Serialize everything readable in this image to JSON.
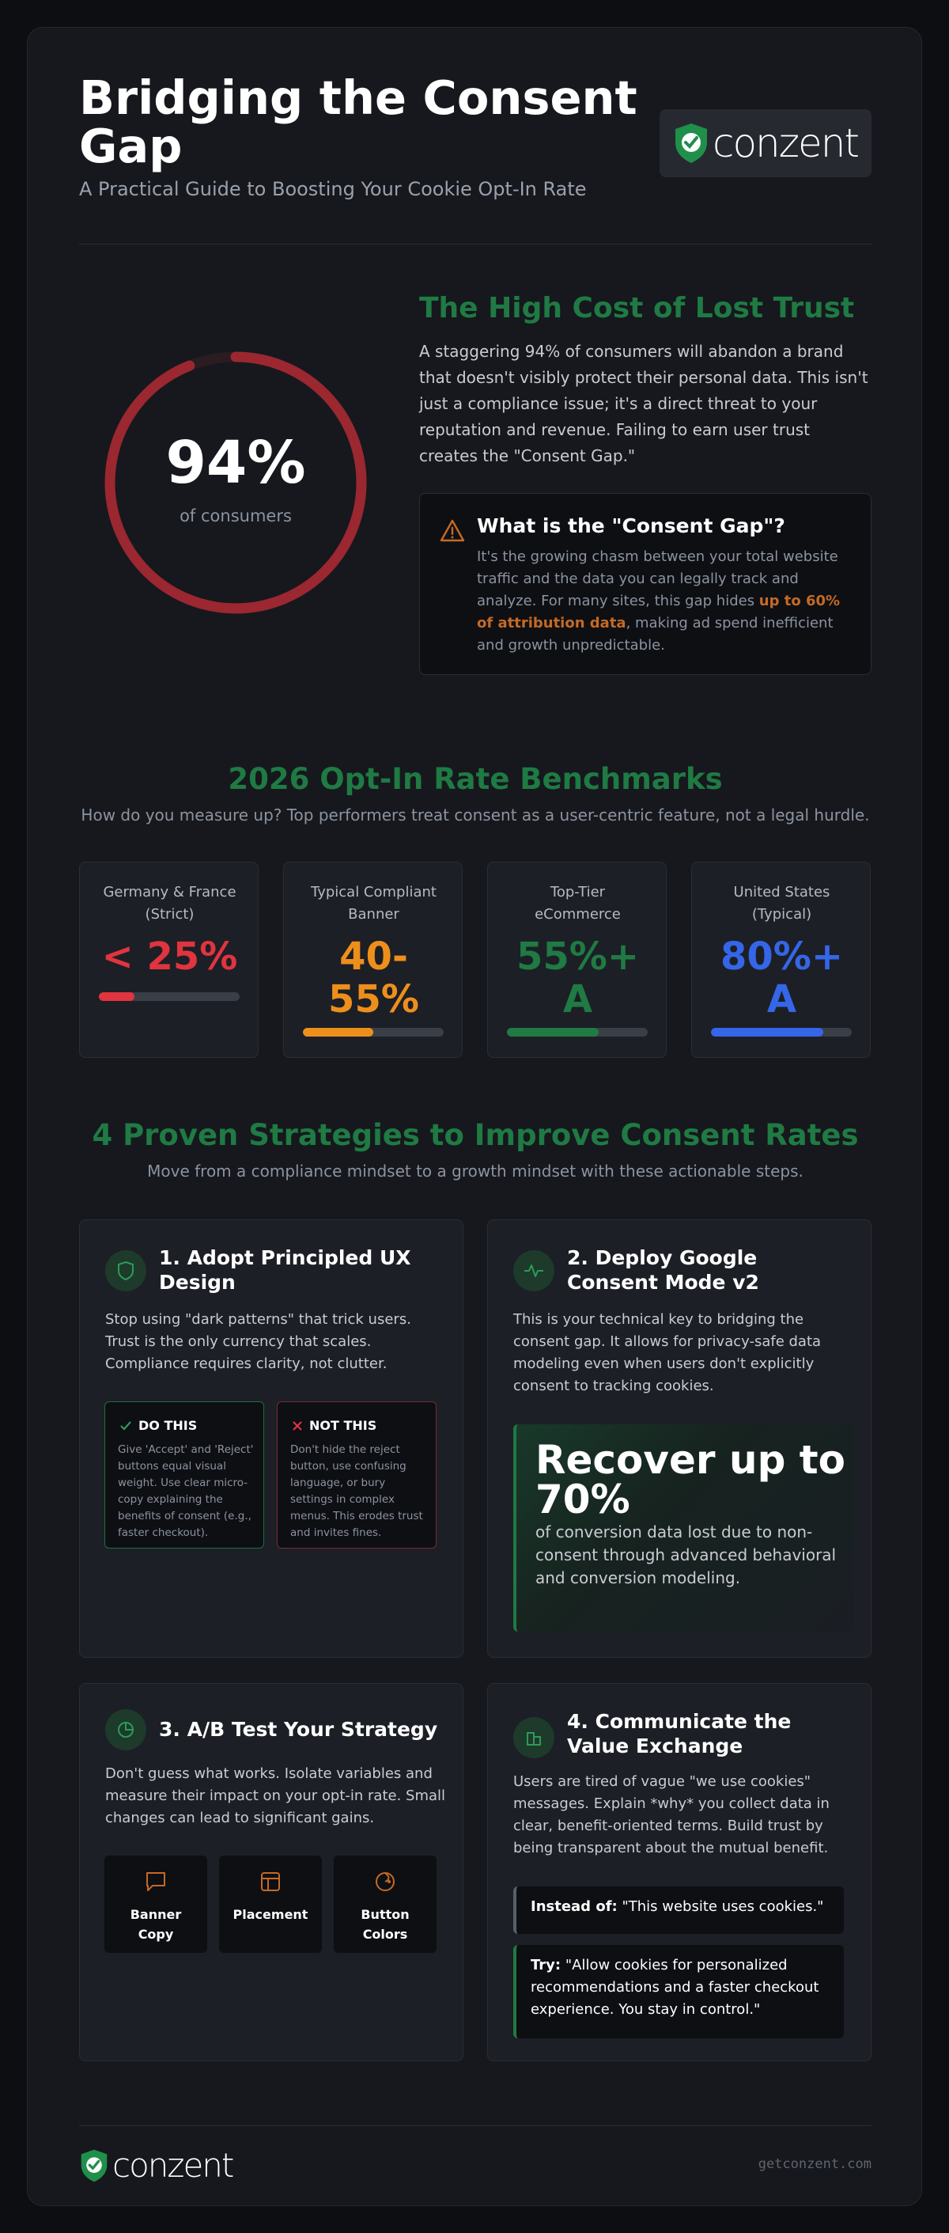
{
  "header": {
    "title": "Bridging the Consent Gap",
    "subtitle": "A Practical Guide to Boosting Your Cookie Opt-In Rate",
    "logo_text": "conzent"
  },
  "stat": {
    "value": "94%",
    "label": "of consumers",
    "ring_fraction": 0.94,
    "ring_color": "#9b2730"
  },
  "cost": {
    "title": "The High Cost of Lost Trust",
    "body": "A staggering 94% of consumers will abandon a brand that doesn't visibly protect their personal data. This isn't just a compliance issue; it's a direct threat to your reputation and revenue. Failing to earn user trust creates the \"Consent Gap.\""
  },
  "gap": {
    "title": "What is the \"Consent Gap\"?",
    "body_before": "It's the growing chasm between your total website traffic and the data you can legally track and analyze. For many sites, this gap hides ",
    "highlight": "up to 60% of attribution data",
    "body_after": ", making ad spend inefficient and growth unpredictable."
  },
  "benchmarks": {
    "title": "2026 Opt-In Rate Benchmarks",
    "subtitle": "How do you measure up? Top performers treat consent as a user-centric feature, not a legal hurdle.",
    "items": [
      {
        "label": "Germany & France (Strict)",
        "value": "< 25%",
        "fill": 0.25,
        "color": "#e0343f"
      },
      {
        "label": "Typical Compliant Banner",
        "value": "40-55%",
        "fill": 0.5,
        "color": "#ee8f1c"
      },
      {
        "label": "Top-Tier eCommerce",
        "value": "55%+ A",
        "fill": 0.65,
        "color": "#1f7a43"
      },
      {
        "label": "United States (Typical)",
        "value": "80%+ A",
        "fill": 0.8,
        "color": "#3566e8"
      }
    ]
  },
  "strategies": {
    "title": "4 Proven Strategies to Improve Consent Rates",
    "subtitle": "Move from a compliance mindset to a growth mindset with these actionable steps.",
    "s1": {
      "title": "1. Adopt Principled UX Design",
      "body": "Stop using \"dark patterns\" that trick users. Trust is the only currency that scales. Compliance requires clarity, not clutter.",
      "do_title": "DO THIS",
      "do_body": "Give 'Accept' and 'Reject' buttons equal visual weight. Use clear micro-copy explaining the benefits of consent (e.g., faster checkout).",
      "dont_title": "NOT THIS",
      "dont_body": "Don't hide the reject button, use confusing language, or bury settings in complex menus. This erodes trust and invites fines."
    },
    "s2": {
      "title": "2. Deploy Google Consent Mode v2",
      "body": "This is your technical key to bridging the consent gap. It allows for privacy-safe data modeling even when users don't explicitly consent to tracking cookies.",
      "big": "Recover up to 70%",
      "small": "of conversion data lost due to non-consent through advanced behavioral and conversion modeling."
    },
    "s3": {
      "title": "3. A/B Test Your Strategy",
      "body": "Don't guess what works. Isolate variables and measure their impact on your opt-in rate. Small changes can lead to significant gains.",
      "tiles": [
        "Banner Copy",
        "Placement",
        "Button Colors"
      ]
    },
    "s4": {
      "title": "4. Communicate the Value Exchange",
      "body": "Users are tired of vague \"we use cookies\" messages. Explain *why* you collect data in clear, benefit-oriented terms. Build trust by being transparent about the mutual benefit.",
      "instead_label": "Instead of:",
      "instead_text": "\"This website uses cookies.\"",
      "try_label": "Try:",
      "try_text": "\"Allow cookies for personalized recommendations and a faster checkout experience. You stay in control.\""
    }
  },
  "footer": {
    "logo_text": "conzent",
    "url": "getconzent.com"
  }
}
